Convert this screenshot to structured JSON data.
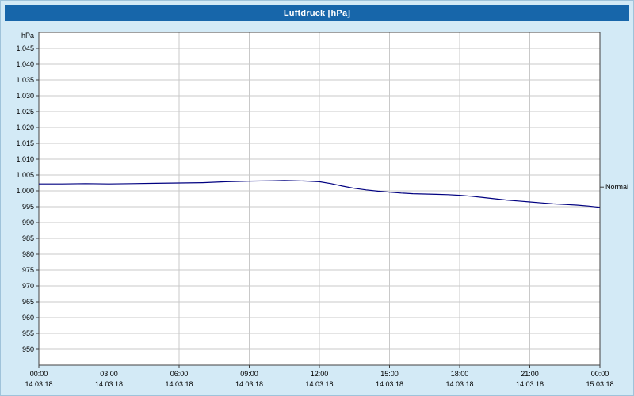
{
  "window": {
    "title": "Luftdruck [hPa]"
  },
  "colors": {
    "background": "#d3eaf6",
    "titlebar": "#1766aa",
    "titlebar_text": "#ffffff",
    "plot_bg": "#ffffff",
    "grid": "#c9c9c9",
    "axis": "#404040",
    "text": "#000000",
    "line": "#000080"
  },
  "chart_data": {
    "type": "line",
    "title": "Luftdruck [hPa]",
    "xlabel": "",
    "ylabel": "hPa",
    "grid": true,
    "legend_position": "none",
    "xlim": [
      0,
      24
    ],
    "ylim": [
      945,
      1050
    ],
    "y_ticks": [
      1045,
      1040,
      1035,
      1030,
      1025,
      1020,
      1015,
      1010,
      1005,
      1000,
      995,
      990,
      985,
      980,
      975,
      970,
      965,
      960,
      955,
      950
    ],
    "y_tick_labels": [
      "1.045",
      "1.040",
      "1.035",
      "1.030",
      "1.025",
      "1.020",
      "1.015",
      "1.010",
      "1.005",
      "1.000",
      "995",
      "990",
      "985",
      "980",
      "975",
      "970",
      "965",
      "960",
      "955",
      "950"
    ],
    "x_tick_hours": [
      0,
      3,
      6,
      9,
      12,
      15,
      18,
      21,
      24
    ],
    "x_tick_labels": [
      "00:00",
      "03:00",
      "06:00",
      "09:00",
      "12:00",
      "15:00",
      "18:00",
      "21:00",
      "00:00"
    ],
    "x_date_labels": [
      "14.03.18",
      "14.03.18",
      "14.03.18",
      "14.03.18",
      "14.03.18",
      "14.03.18",
      "14.03.18",
      "14.03.18",
      "15.03.18"
    ],
    "normal_marker": {
      "label": "Normal",
      "value": 1001.2
    },
    "series": [
      {
        "name": "Luftdruck",
        "color": "#000080",
        "x": [
          0,
          1,
          2,
          3,
          4,
          5,
          6,
          7,
          8,
          9,
          10,
          10.5,
          11,
          11.5,
          12,
          12.5,
          13,
          13.5,
          14,
          14.5,
          15,
          15.5,
          16,
          17,
          17.5,
          18,
          18.5,
          19,
          19.5,
          20,
          20.5,
          21,
          21.5,
          22,
          22.5,
          23,
          23.5,
          24
        ],
        "values": [
          1002.2,
          1002.2,
          1002.3,
          1002.2,
          1002.3,
          1002.4,
          1002.5,
          1002.6,
          1002.9,
          1003.1,
          1003.2,
          1003.3,
          1003.2,
          1003.1,
          1002.9,
          1002.3,
          1001.5,
          1000.8,
          1000.3,
          999.9,
          999.6,
          999.3,
          999.1,
          998.9,
          998.8,
          998.6,
          998.3,
          997.9,
          997.5,
          997.1,
          996.8,
          996.5,
          996.2,
          995.9,
          995.7,
          995.5,
          995.2,
          994.8
        ]
      }
    ]
  }
}
